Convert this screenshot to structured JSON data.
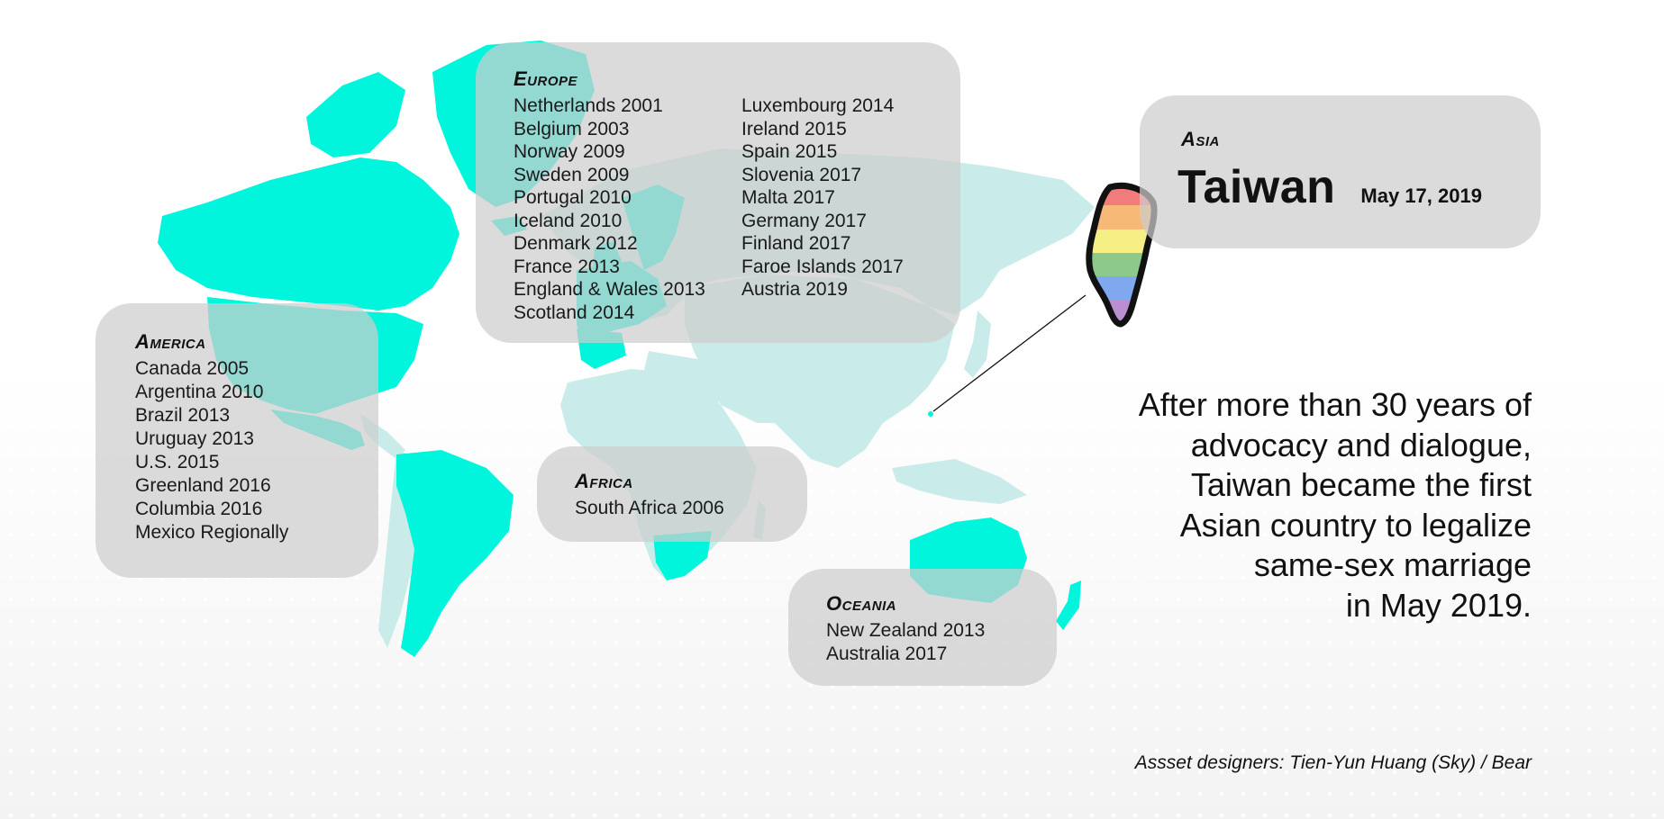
{
  "colors": {
    "same_sex_marriage_country": "#00f5dd",
    "other_land": "#c9ecea",
    "panel": "#cdcdcd",
    "text": "#111111"
  },
  "regions": {
    "europe": {
      "title": "Europe",
      "column1": [
        "Netherlands 2001",
        "Belgium 2003",
        "Norway 2009",
        "Sweden 2009",
        "Portugal 2010",
        "Iceland 2010",
        "Denmark 2012",
        "France 2013",
        "England & Wales 2013",
        "Scotland 2014"
      ],
      "column2": [
        "Luxembourg 2014",
        "Ireland 2015",
        "Spain 2015",
        "Slovenia 2017",
        "Malta 2017",
        "Germany 2017",
        "Finland 2017",
        "Faroe Islands 2017",
        "Austria 2019"
      ]
    },
    "america": {
      "title": "America",
      "items": [
        "Canada 2005",
        "Argentina 2010",
        "Brazil 2013",
        "Uruguay 2013",
        "U.S. 2015",
        "Greenland 2016",
        "Columbia 2016",
        "Mexico Regionally"
      ]
    },
    "africa": {
      "title": "Africa",
      "items": [
        "South Africa 2006"
      ]
    },
    "oceania": {
      "title": "Oceania",
      "items": [
        "New Zealand 2013",
        "Australia 2017"
      ]
    },
    "asia": {
      "title": "Asia",
      "country": "Taiwan",
      "date": "May 17, 2019"
    }
  },
  "headline_lines": [
    "After more than 30 years of",
    "advocacy and dialogue,",
    "Taiwan became the first",
    "Asian country to legalize",
    "same-sex marriage",
    "in May 2019."
  ],
  "credit": "Assset designers: Tien-Yun Huang (Sky) / Bear",
  "taiwan_rainbow_colors": [
    "#f27c7c",
    "#f8b878",
    "#f5ef86",
    "#8cc98a",
    "#7fa8ef",
    "#b98fd2"
  ]
}
